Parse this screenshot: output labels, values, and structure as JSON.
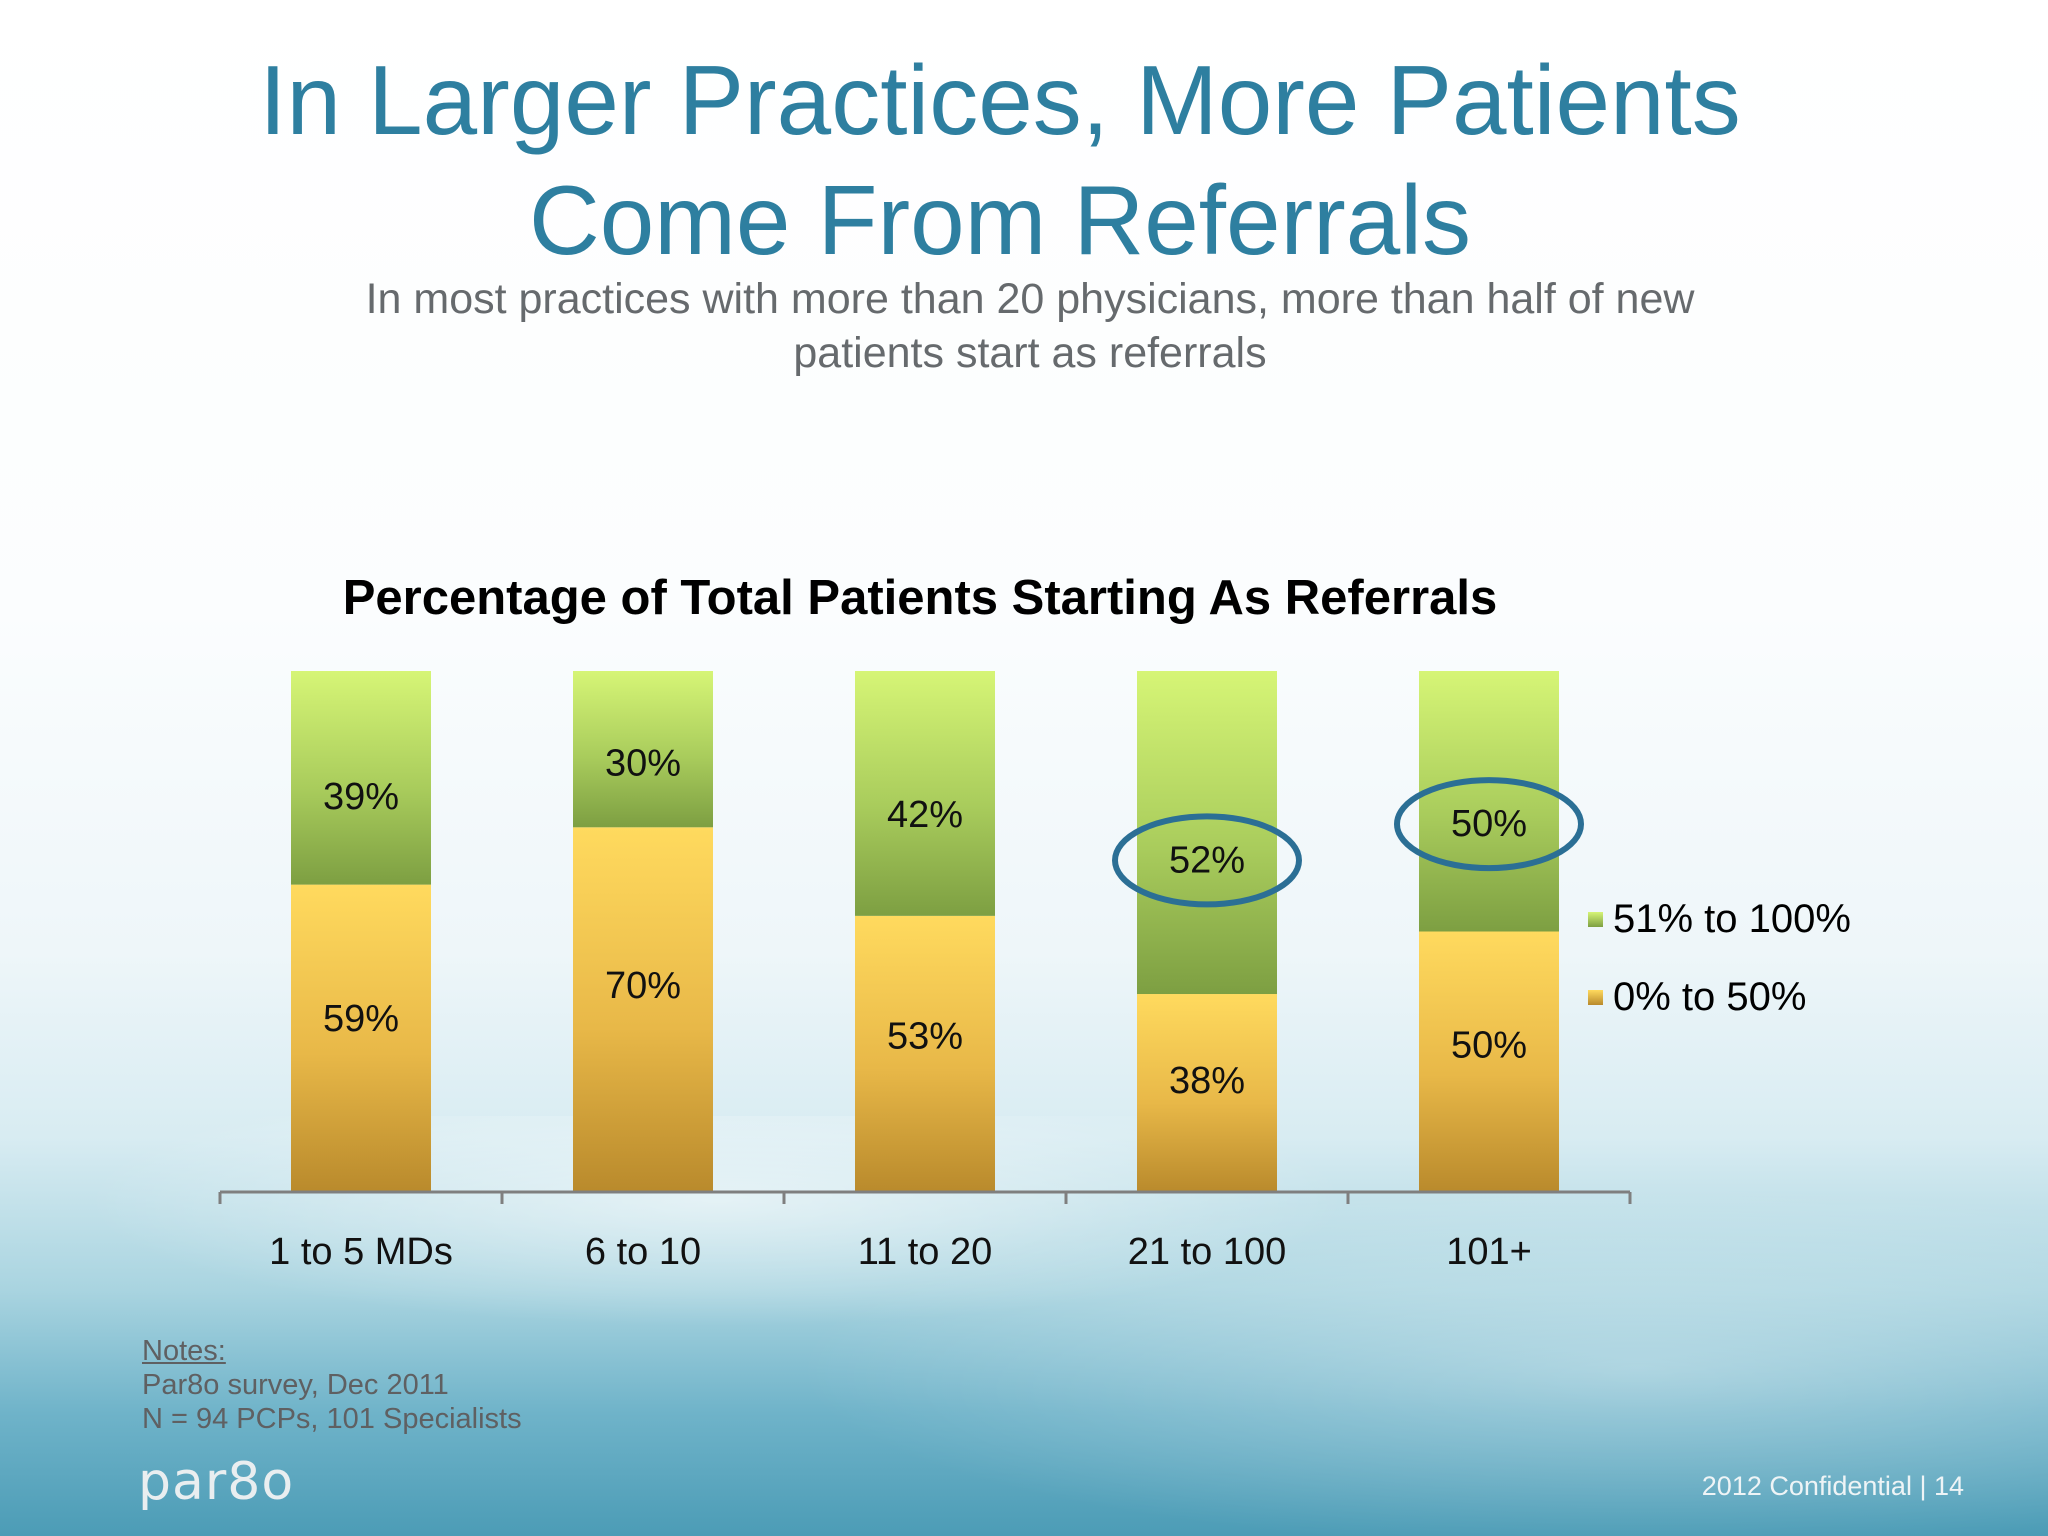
{
  "slide": {
    "title": "In Larger Practices, More Patients Come From Referrals",
    "subtitle": "In most practices with more than 20 physicians, more than half of new patients start as referrals",
    "notes_heading": "Notes:",
    "notes_lines": [
      "Par8o survey, Dec 2011",
      "N = 94 PCPs, 101 Specialists"
    ],
    "logo": "par8o",
    "footer": "2012 Confidential   |  14"
  },
  "chart_data": {
    "type": "bar",
    "stacked": true,
    "title": "Percentage of Total Patients Starting As Referrals",
    "categories": [
      "1 to 5 MDs",
      "6 to 10",
      "11 to 20",
      "21 to 100",
      "101+"
    ],
    "series": [
      {
        "name": "0% to 50%",
        "values": [
          59,
          70,
          53,
          38,
          50
        ],
        "labels": [
          "59%",
          "70%",
          "53%",
          "38%",
          "50%"
        ],
        "color": "#f5c84e"
      },
      {
        "name": "51% to 100%",
        "values": [
          39,
          30,
          42,
          52,
          50
        ],
        "labels": [
          "39%",
          "30%",
          "42%",
          "52%",
          "50%"
        ],
        "color": "#a7d15a"
      }
    ],
    "highlighted_categories": [
      "21 to 100",
      "101+"
    ],
    "highlight_color": "#2b6f95",
    "legend_position": "right"
  }
}
